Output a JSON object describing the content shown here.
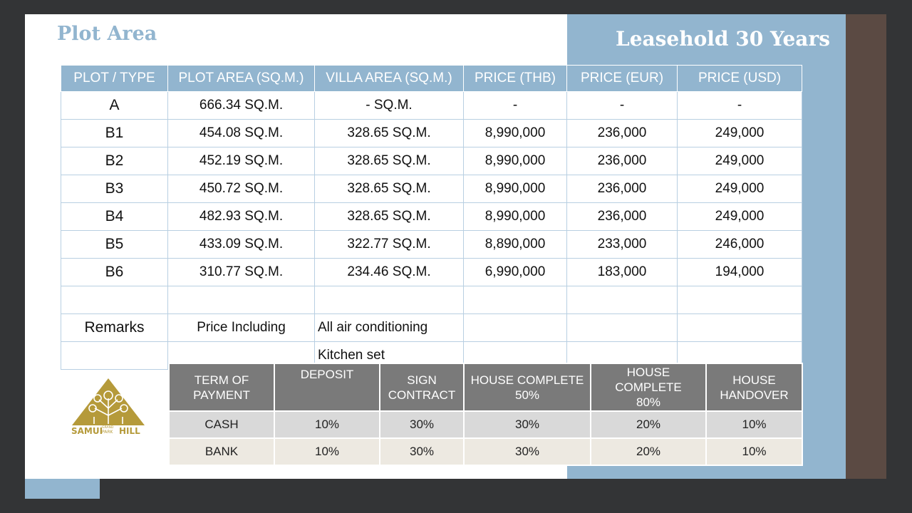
{
  "title": "Plot Area",
  "subtitle": "Leasehold 30 Years",
  "price_table": {
    "headers": [
      "PLOT / TYPE",
      "PLOT AREA (SQ.M.)",
      "VILLA AREA (SQ.M.)",
      "PRICE  (THB)",
      "PRICE  (EUR)",
      "PRICE  (USD)"
    ],
    "rows": [
      [
        "A",
        "666.34 SQ.M.",
        "- SQ.M.",
        "-",
        "-",
        "-"
      ],
      [
        "B1",
        "454.08 SQ.M.",
        "328.65 SQ.M.",
        "8,990,000",
        "236,000",
        "249,000"
      ],
      [
        "B2",
        "452.19 SQ.M.",
        "328.65 SQ.M.",
        "8,990,000",
        "236,000",
        "249,000"
      ],
      [
        "B3",
        "450.72 SQ.M.",
        "328.65 SQ.M.",
        "8,990,000",
        "236,000",
        "249,000"
      ],
      [
        "B4",
        "482.93 SQ.M.",
        "328.65 SQ.M.",
        "8,990,000",
        "236,000",
        "249,000"
      ],
      [
        "B5",
        "433.09 SQ.M.",
        "322.77 SQ.M.",
        "8,890,000",
        "233,000",
        "246,000"
      ],
      [
        "B6",
        "310.77 SQ.M.",
        "234.46 SQ.M.",
        "6,990,000",
        "183,000",
        "194,000"
      ]
    ],
    "remarks_label": "Remarks",
    "price_including": "Price Including",
    "included_items": [
      "All air conditioning",
      "Kitchen set"
    ]
  },
  "payment_table": {
    "headers": [
      "TERM OF\nPAYMENT",
      "DEPOSIT",
      "SIGN\nCONTRACT",
      "HOUSE COMPLETE\n50%",
      "HOUSE COMPLETE\n80%",
      "HOUSE\nHANDOVER"
    ],
    "rows": [
      [
        "CASH",
        "10%",
        "30%",
        "30%",
        "20%",
        "10%"
      ],
      [
        "BANK",
        "10%",
        "30%",
        "30%",
        "20%",
        "10%"
      ]
    ]
  },
  "logo": {
    "text_left": "SAMUI",
    "text_mid_top": "GRAND",
    "text_mid_bottom": "PARK",
    "text_right": "HILL"
  },
  "colors": {
    "accent_blue": "#92b5cf",
    "header_gray": "#7a7a7a",
    "logo_gold": "#b59a3a",
    "brown": "#5b4a43"
  }
}
